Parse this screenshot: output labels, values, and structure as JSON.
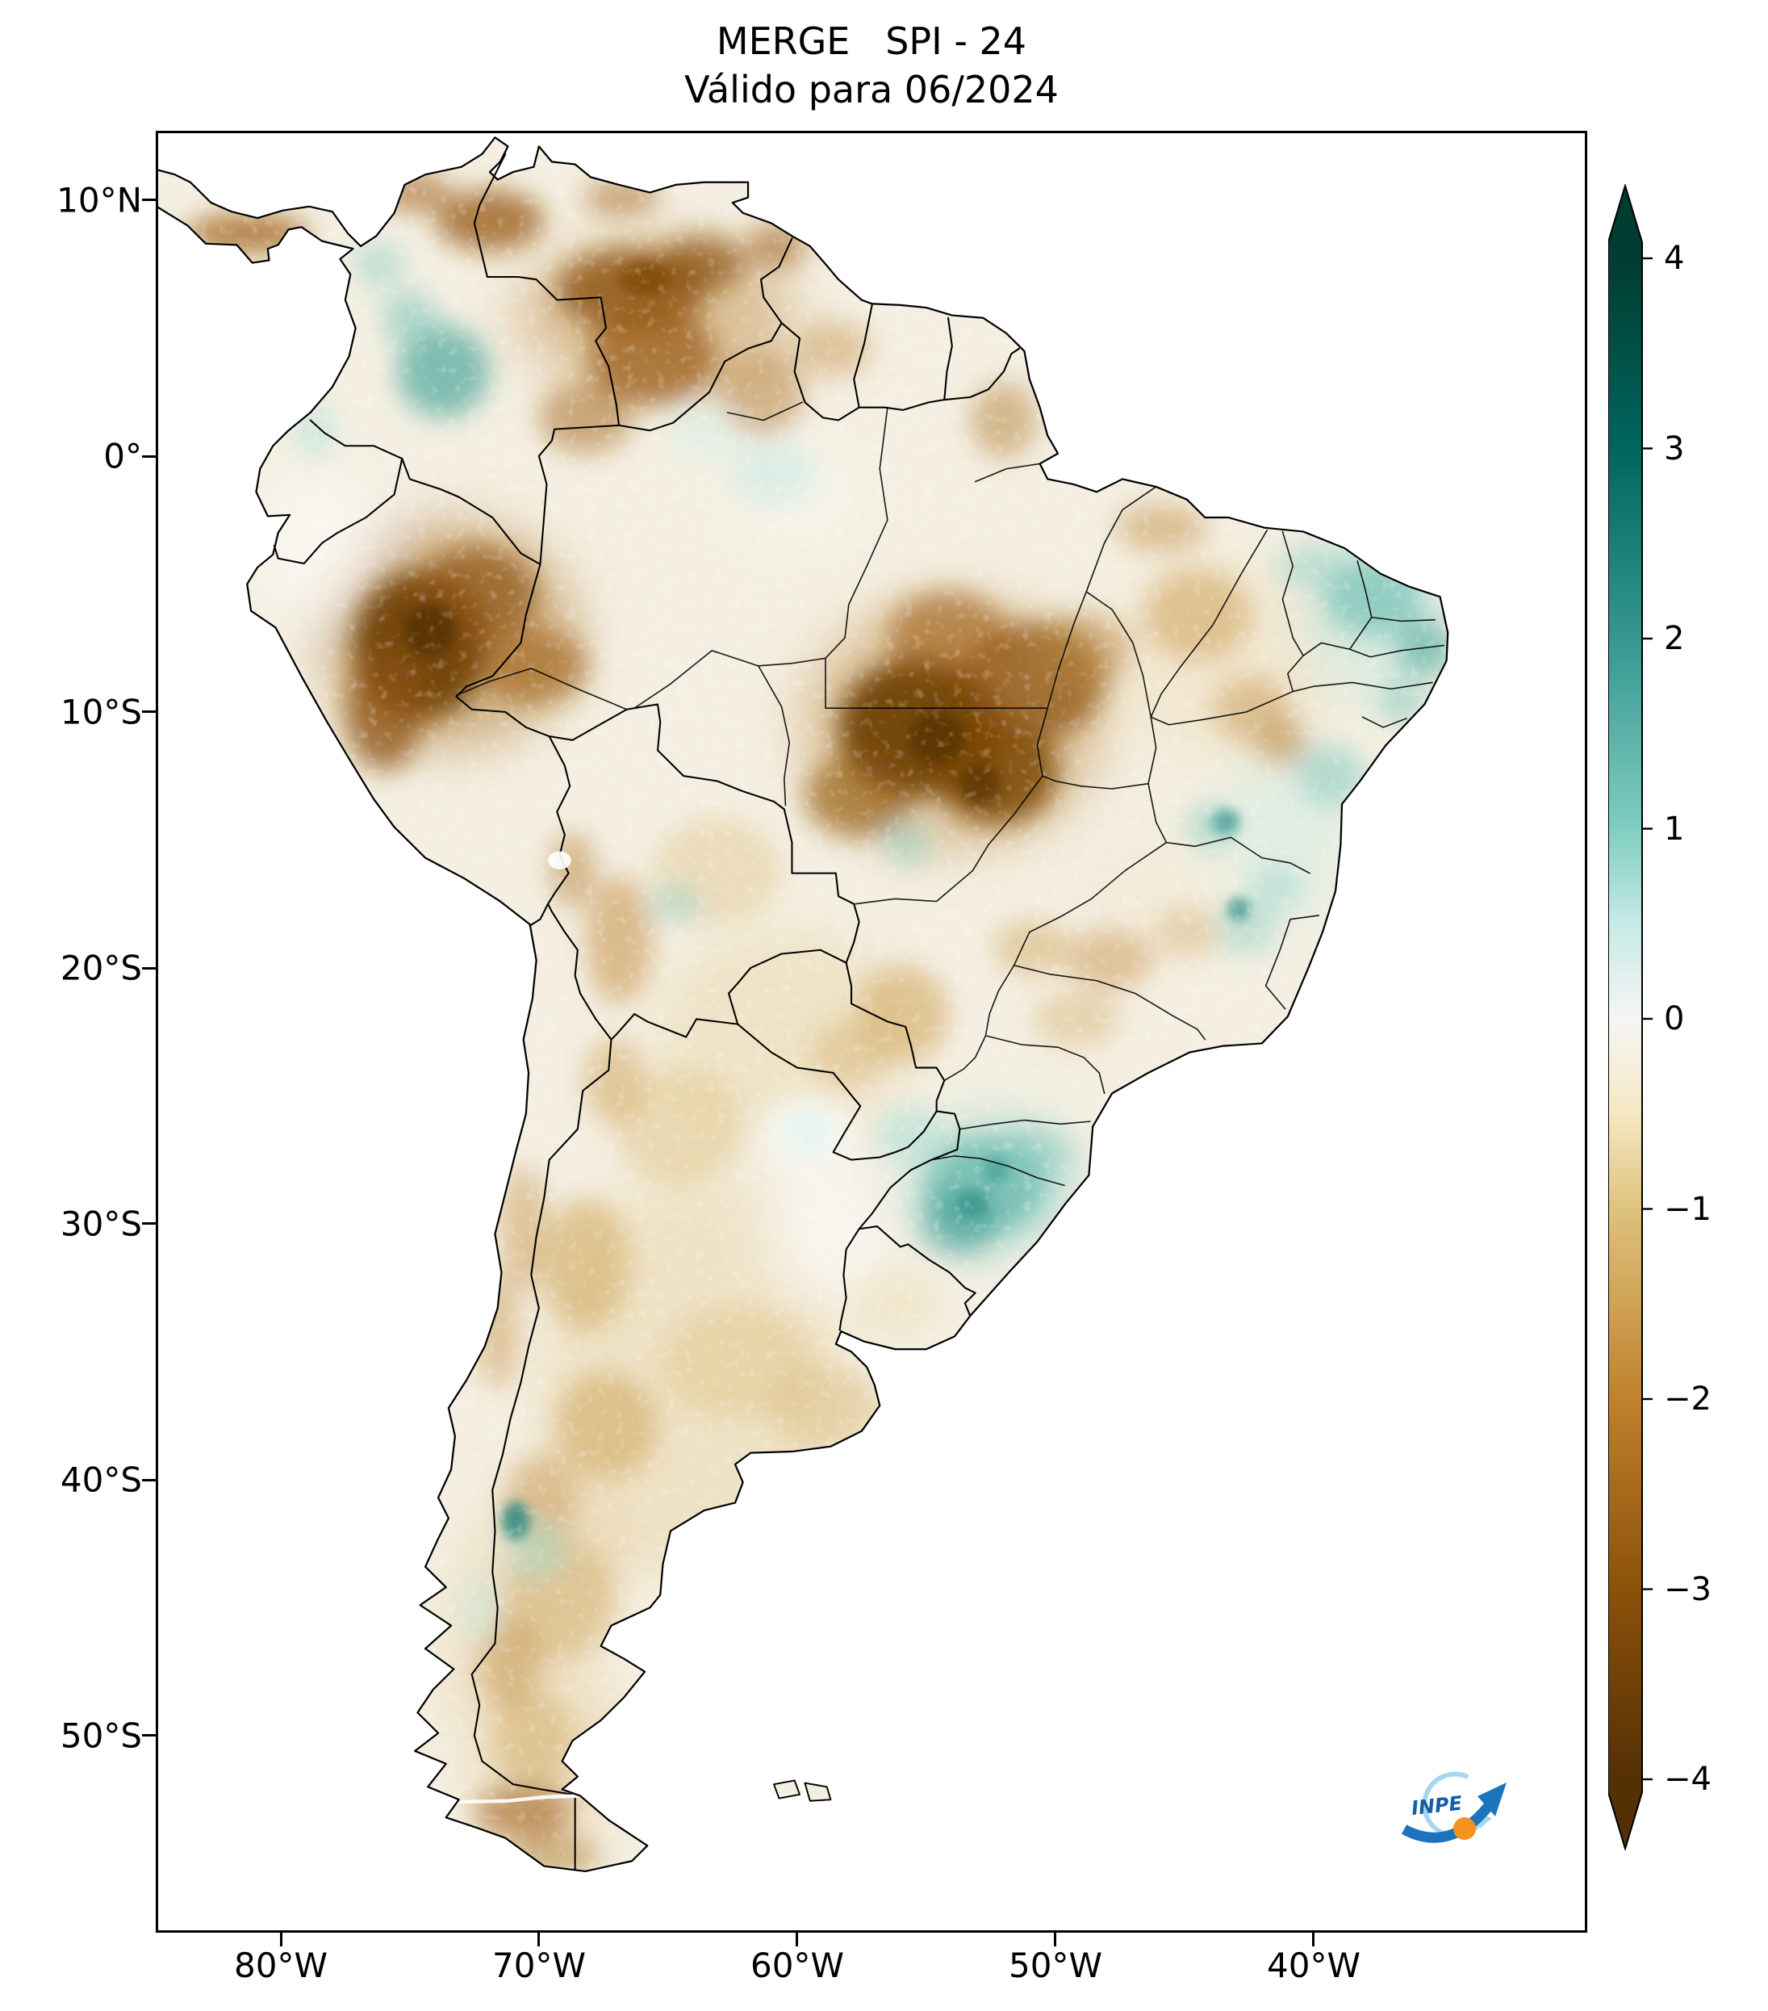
{
  "figure": {
    "title": "MERGE   SPI - 24",
    "subtitle": "Válido para 06/2024"
  },
  "axes": {
    "lat_ticks": [
      "10°N",
      "0°",
      "10°S",
      "20°S",
      "30°S",
      "40°S",
      "50°S"
    ],
    "lon_ticks": [
      "80°W",
      "70°W",
      "60°W",
      "50°W",
      "40°W"
    ]
  },
  "colorbar": {
    "tick_labels": [
      "4",
      "3",
      "2",
      "1",
      "0",
      "−1",
      "−2",
      "−3",
      "−4"
    ],
    "tick_values": [
      4,
      3,
      2,
      1,
      0,
      -1,
      -2,
      -3,
      -4
    ],
    "range_min": -4,
    "range_max": 4,
    "extend": "both",
    "colormap": "BrBG",
    "stops": [
      {
        "value": 4,
        "color": "#003c30"
      },
      {
        "value": 3,
        "color": "#01665e"
      },
      {
        "value": 2,
        "color": "#35978f"
      },
      {
        "value": 1,
        "color": "#80cdc1"
      },
      {
        "value": 0.5,
        "color": "#c7eae5"
      },
      {
        "value": 0,
        "color": "#f5f5f5"
      },
      {
        "value": -0.5,
        "color": "#f6e8c3"
      },
      {
        "value": -1,
        "color": "#dfc27d"
      },
      {
        "value": -2,
        "color": "#bf812d"
      },
      {
        "value": -3,
        "color": "#8c510a"
      },
      {
        "value": -4,
        "color": "#543005"
      }
    ]
  },
  "logo": {
    "text": "INPE",
    "blue": "#1c75bc",
    "light_blue": "#a7d6f0",
    "orange": "#f6921e"
  },
  "chart_data": {
    "type": "heatmap",
    "title": "MERGE   SPI - 24",
    "subtitle": "Válido para 06/2024",
    "variable": "SPI-24 (Standardized Precipitation Index, 24 months) from MERGE precipitation",
    "region": "South America",
    "colorbar_range": [
      -4,
      4
    ],
    "colorbar_ticks": [
      4,
      3,
      2,
      1,
      0,
      -1,
      -2,
      -3,
      -4
    ],
    "lat_tick_labels": [
      "10°N",
      "0°",
      "10°S",
      "20°S",
      "30°S",
      "40°S",
      "50°S"
    ],
    "lon_tick_labels": [
      "80°W",
      "70°W",
      "60°W",
      "50°W",
      "40°W"
    ],
    "legend_position": "right",
    "notable_anomalies": [
      {
        "area": "Eastern Peru / western Amazon",
        "sign": "dry",
        "approx_spi": -3.5
      },
      {
        "area": "Central Brazil (south Pará / Mato Grosso)",
        "sign": "dry",
        "approx_spi": -3
      },
      {
        "area": "Venezuela and Guiana shield",
        "sign": "dry",
        "approx_spi": -2.5
      },
      {
        "area": "North Colombia / Venezuela border",
        "sign": "dry",
        "approx_spi": -2
      },
      {
        "area": "Northeast Brazil coast",
        "sign": "wet",
        "approx_spi": 1.5
      },
      {
        "area": "Southern Brazil (Rio Grande do Sul / Santa Catarina)",
        "sign": "wet",
        "approx_spi": 2
      },
      {
        "area": "Central Colombia",
        "sign": "wet",
        "approx_spi": 1.5
      },
      {
        "area": "Western Argentina and Patagonia",
        "sign": "dry",
        "approx_spi": -1.5
      },
      {
        "area": "Andean Patagonia spot near 41°S 71°W",
        "sign": "wet",
        "approx_spi": 2
      }
    ]
  }
}
